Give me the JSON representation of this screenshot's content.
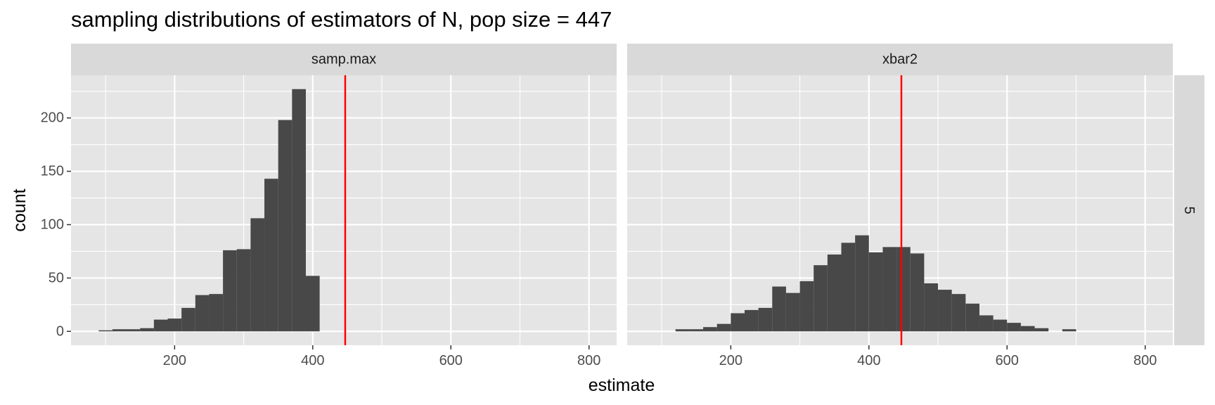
{
  "chart_data": {
    "type": "bar",
    "title": "sampling distributions of estimators of N, pop size = 447",
    "xlabel": "estimate",
    "ylabel": "count",
    "xlim": [
      50,
      840
    ],
    "ylim": [
      -13,
      240
    ],
    "x_ticks": [
      200,
      400,
      600,
      800
    ],
    "y_ticks": [
      0,
      50,
      100,
      150,
      200
    ],
    "row_strip": "5",
    "reference_line": {
      "x": 447,
      "color": "#ff0000"
    },
    "bin_width": 20,
    "grid": true,
    "colors": {
      "panel_bg": "#e5e5e5",
      "grid": "#ffffff",
      "strip_bg": "#d9d9d9",
      "bar": "#484848"
    },
    "facets": [
      {
        "name": "samp.max",
        "bins": [
          {
            "x": 100,
            "count": 1
          },
          {
            "x": 120,
            "count": 2
          },
          {
            "x": 140,
            "count": 2
          },
          {
            "x": 160,
            "count": 3
          },
          {
            "x": 180,
            "count": 11
          },
          {
            "x": 200,
            "count": 12
          },
          {
            "x": 220,
            "count": 22
          },
          {
            "x": 240,
            "count": 34
          },
          {
            "x": 260,
            "count": 35
          },
          {
            "x": 280,
            "count": 76
          },
          {
            "x": 300,
            "count": 77
          },
          {
            "x": 320,
            "count": 106
          },
          {
            "x": 340,
            "count": 143
          },
          {
            "x": 360,
            "count": 198
          },
          {
            "x": 380,
            "count": 227
          },
          {
            "x": 400,
            "count": 52
          }
        ]
      },
      {
        "name": "xbar2",
        "bins": [
          {
            "x": 130,
            "count": 2
          },
          {
            "x": 150,
            "count": 2
          },
          {
            "x": 170,
            "count": 4
          },
          {
            "x": 190,
            "count": 7
          },
          {
            "x": 210,
            "count": 17
          },
          {
            "x": 230,
            "count": 20
          },
          {
            "x": 250,
            "count": 22
          },
          {
            "x": 270,
            "count": 42
          },
          {
            "x": 290,
            "count": 36
          },
          {
            "x": 310,
            "count": 47
          },
          {
            "x": 330,
            "count": 62
          },
          {
            "x": 350,
            "count": 72
          },
          {
            "x": 370,
            "count": 83
          },
          {
            "x": 390,
            "count": 90
          },
          {
            "x": 410,
            "count": 74
          },
          {
            "x": 430,
            "count": 79
          },
          {
            "x": 450,
            "count": 79
          },
          {
            "x": 470,
            "count": 73
          },
          {
            "x": 490,
            "count": 45
          },
          {
            "x": 510,
            "count": 39
          },
          {
            "x": 530,
            "count": 35
          },
          {
            "x": 550,
            "count": 26
          },
          {
            "x": 570,
            "count": 15
          },
          {
            "x": 590,
            "count": 11
          },
          {
            "x": 610,
            "count": 8
          },
          {
            "x": 630,
            "count": 5
          },
          {
            "x": 650,
            "count": 3
          },
          {
            "x": 670,
            "count": 0
          },
          {
            "x": 690,
            "count": 2
          }
        ]
      }
    ]
  }
}
